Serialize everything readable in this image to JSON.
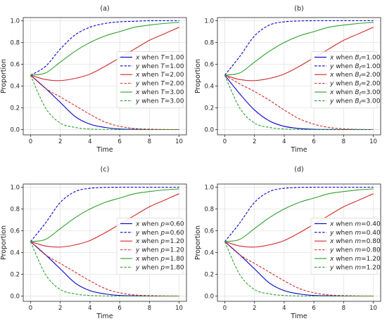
{
  "chart_data": [
    {
      "type": "line",
      "title": "(a)",
      "xlabel": "Time",
      "ylabel": "Proportion",
      "xlim": [
        0,
        10
      ],
      "ylim": [
        0,
        1.0
      ],
      "xticks": [
        "0",
        "2",
        "4",
        "6",
        "8",
        "10"
      ],
      "yticks": [
        "0.0",
        "0.2",
        "0.4",
        "0.6",
        "0.8",
        "1.0"
      ],
      "grid": true,
      "legend_position": "center-right",
      "x": [
        0,
        1,
        2,
        3,
        4,
        5,
        6,
        7,
        8,
        9,
        10
      ],
      "series": [
        {
          "name": "x when T=1.00",
          "color": "#0000cc",
          "dash": "solid",
          "values": [
            0.5,
            0.38,
            0.25,
            0.12,
            0.05,
            0.02,
            0.005,
            0.002,
            0.0,
            0.0,
            0.0
          ]
        },
        {
          "name": "y when T=1.00",
          "color": "#0000cc",
          "dash": "dashed",
          "values": [
            0.5,
            0.58,
            0.74,
            0.87,
            0.94,
            0.975,
            0.99,
            0.995,
            1.0,
            1.0,
            1.0
          ]
        },
        {
          "name": "x when T=2.00",
          "color": "#d62728",
          "dash": "solid",
          "values": [
            0.5,
            0.46,
            0.45,
            0.47,
            0.51,
            0.58,
            0.66,
            0.74,
            0.82,
            0.88,
            0.94
          ]
        },
        {
          "name": "y when T=2.00",
          "color": "#d62728",
          "dash": "dashed",
          "values": [
            0.5,
            0.38,
            0.3,
            0.22,
            0.14,
            0.07,
            0.03,
            0.01,
            0.004,
            0.001,
            0.0
          ]
        },
        {
          "name": "x when T=3.00",
          "color": "#2ca02c",
          "dash": "solid",
          "values": [
            0.5,
            0.52,
            0.62,
            0.72,
            0.8,
            0.86,
            0.9,
            0.94,
            0.96,
            0.975,
            0.985
          ]
        },
        {
          "name": "y when T=3.00",
          "color": "#2ca02c",
          "dash": "dashed",
          "values": [
            0.5,
            0.2,
            0.06,
            0.02,
            0.005,
            0.001,
            0.0,
            0.0,
            0.0,
            0.0,
            0.0
          ]
        }
      ]
    },
    {
      "type": "line",
      "title": "(b)",
      "xlabel": "Time",
      "ylabel": "Proportion",
      "xlim": [
        0,
        10
      ],
      "ylim": [
        0,
        1.0
      ],
      "xticks": [
        "0",
        "2",
        "4",
        "6",
        "8",
        "10"
      ],
      "yticks": [
        "0.0",
        "0.2",
        "0.4",
        "0.6",
        "0.8",
        "1.0"
      ],
      "grid": true,
      "legend_position": "center-right",
      "x": [
        0,
        1,
        2,
        3,
        4,
        5,
        6,
        7,
        8,
        9,
        10
      ],
      "series": [
        {
          "name": "x when B_f=1.00",
          "color": "#0000cc",
          "dash": "solid",
          "values": [
            0.5,
            0.33,
            0.18,
            0.08,
            0.03,
            0.01,
            0.003,
            0.001,
            0.0,
            0.0,
            0.0
          ]
        },
        {
          "name": "y when B_f=1.00",
          "color": "#0000cc",
          "dash": "dashed",
          "values": [
            0.5,
            0.67,
            0.86,
            0.96,
            0.99,
            0.998,
            1.0,
            1.0,
            1.0,
            1.0,
            1.0
          ]
        },
        {
          "name": "x when B_f=2.00",
          "color": "#d62728",
          "dash": "solid",
          "values": [
            0.5,
            0.46,
            0.45,
            0.47,
            0.51,
            0.58,
            0.66,
            0.74,
            0.82,
            0.88,
            0.94
          ]
        },
        {
          "name": "y when B_f=2.00",
          "color": "#d62728",
          "dash": "dashed",
          "values": [
            0.5,
            0.42,
            0.35,
            0.27,
            0.18,
            0.1,
            0.05,
            0.02,
            0.007,
            0.002,
            0.0
          ]
        },
        {
          "name": "x when B_f=3.00",
          "color": "#2ca02c",
          "dash": "solid",
          "values": [
            0.5,
            0.52,
            0.62,
            0.72,
            0.8,
            0.86,
            0.9,
            0.94,
            0.96,
            0.975,
            0.985
          ]
        },
        {
          "name": "y when B_f=3.00",
          "color": "#2ca02c",
          "dash": "dashed",
          "values": [
            0.5,
            0.2,
            0.06,
            0.02,
            0.005,
            0.001,
            0.0,
            0.0,
            0.0,
            0.0,
            0.0
          ]
        }
      ]
    },
    {
      "type": "line",
      "title": "(c)",
      "xlabel": "Time",
      "ylabel": "Proportion",
      "xlim": [
        0,
        10
      ],
      "ylim": [
        0,
        1.0
      ],
      "xticks": [
        "0",
        "2",
        "4",
        "6",
        "8",
        "10"
      ],
      "yticks": [
        "0.0",
        "0.2",
        "0.4",
        "0.6",
        "0.8",
        "1.0"
      ],
      "grid": true,
      "legend_position": "center-right",
      "x": [
        0,
        1,
        2,
        3,
        4,
        5,
        6,
        7,
        8,
        9,
        10
      ],
      "series": [
        {
          "name": "x when p=0.60",
          "color": "#0000cc",
          "dash": "solid",
          "values": [
            0.5,
            0.38,
            0.25,
            0.12,
            0.05,
            0.02,
            0.005,
            0.002,
            0.0,
            0.0,
            0.0
          ]
        },
        {
          "name": "y when p=0.60",
          "color": "#0000cc",
          "dash": "dashed",
          "values": [
            0.5,
            0.67,
            0.86,
            0.96,
            0.99,
            0.998,
            1.0,
            1.0,
            1.0,
            1.0,
            1.0
          ]
        },
        {
          "name": "x when p=1.20",
          "color": "#d62728",
          "dash": "solid",
          "values": [
            0.5,
            0.46,
            0.45,
            0.47,
            0.51,
            0.58,
            0.66,
            0.74,
            0.82,
            0.88,
            0.94
          ]
        },
        {
          "name": "y when p=1.20",
          "color": "#d62728",
          "dash": "dashed",
          "values": [
            0.5,
            0.38,
            0.3,
            0.22,
            0.14,
            0.07,
            0.03,
            0.01,
            0.004,
            0.001,
            0.0
          ]
        },
        {
          "name": "x when p=1.80",
          "color": "#2ca02c",
          "dash": "solid",
          "values": [
            0.5,
            0.52,
            0.62,
            0.72,
            0.8,
            0.86,
            0.9,
            0.94,
            0.96,
            0.975,
            0.985
          ]
        },
        {
          "name": "y when p=1.80",
          "color": "#2ca02c",
          "dash": "dashed",
          "values": [
            0.5,
            0.2,
            0.06,
            0.02,
            0.005,
            0.001,
            0.0,
            0.0,
            0.0,
            0.0,
            0.0
          ]
        }
      ]
    },
    {
      "type": "line",
      "title": "(d)",
      "xlabel": "Time",
      "ylabel": "Proportion",
      "xlim": [
        0,
        10
      ],
      "ylim": [
        0,
        1.0
      ],
      "xticks": [
        "0",
        "2",
        "4",
        "6",
        "8",
        "10"
      ],
      "yticks": [
        "0.0",
        "0.2",
        "0.4",
        "0.6",
        "0.8",
        "1.0"
      ],
      "grid": true,
      "legend_position": "center-right",
      "x": [
        0,
        1,
        2,
        3,
        4,
        5,
        6,
        7,
        8,
        9,
        10
      ],
      "series": [
        {
          "name": "x when m=0.40",
          "color": "#0000cc",
          "dash": "solid",
          "values": [
            0.5,
            0.38,
            0.25,
            0.12,
            0.05,
            0.02,
            0.005,
            0.002,
            0.0,
            0.0,
            0.0
          ]
        },
        {
          "name": "y when m=0.40",
          "color": "#0000cc",
          "dash": "dashed",
          "values": [
            0.5,
            0.67,
            0.86,
            0.96,
            0.99,
            0.998,
            1.0,
            1.0,
            1.0,
            1.0,
            1.0
          ]
        },
        {
          "name": "x when m=0.80",
          "color": "#d62728",
          "dash": "solid",
          "values": [
            0.5,
            0.46,
            0.45,
            0.47,
            0.51,
            0.58,
            0.66,
            0.74,
            0.82,
            0.88,
            0.94
          ]
        },
        {
          "name": "y when m=0.80",
          "color": "#d62728",
          "dash": "dashed",
          "values": [
            0.5,
            0.38,
            0.3,
            0.22,
            0.14,
            0.07,
            0.03,
            0.01,
            0.004,
            0.001,
            0.0
          ]
        },
        {
          "name": "x when m=1.20",
          "color": "#2ca02c",
          "dash": "solid",
          "values": [
            0.5,
            0.52,
            0.62,
            0.72,
            0.8,
            0.86,
            0.9,
            0.94,
            0.96,
            0.975,
            0.985
          ]
        },
        {
          "name": "y when m=1.20",
          "color": "#2ca02c",
          "dash": "dashed",
          "values": [
            0.5,
            0.2,
            0.06,
            0.02,
            0.005,
            0.001,
            0.0,
            0.0,
            0.0,
            0.0,
            0.0
          ]
        }
      ]
    }
  ]
}
